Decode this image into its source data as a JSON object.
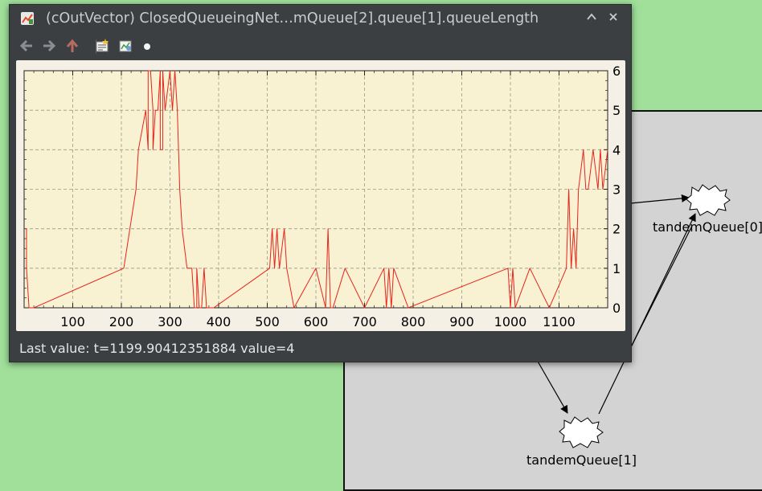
{
  "window": {
    "title": "(cOutVector) ClosedQueueingNet…mQueue[2].queue[1].queueLength",
    "status_text": "Last value: t=1199.90412351884  value=4"
  },
  "toolbar": {
    "icons": [
      "back-arrow-icon",
      "forward-arrow-icon",
      "up-arrow-icon",
      "add-chart-icon",
      "chart-properties-icon",
      "dot-icon"
    ]
  },
  "network": {
    "nodes": [
      {
        "label": "tandemQueue[0]"
      },
      {
        "label": "tandemQueue[1]"
      }
    ]
  },
  "chart_data": {
    "type": "line",
    "xlim": [
      0,
      1200
    ],
    "ylim": [
      0,
      6
    ],
    "x_ticks": [
      "100",
      "200",
      "300",
      "400",
      "500",
      "600",
      "700",
      "800",
      "900",
      "1000",
      "1100"
    ],
    "y_ticks": [
      "0",
      "1",
      "2",
      "3",
      "4",
      "5",
      "6"
    ],
    "grid": true,
    "series_color": "#e8231d",
    "x": [
      2,
      5,
      5,
      10,
      20,
      205,
      230,
      235,
      250,
      255,
      255,
      260,
      265,
      265,
      270,
      275,
      280,
      280,
      285,
      285,
      290,
      300,
      305,
      310,
      315,
      320,
      325,
      335,
      345,
      350,
      355,
      355,
      360,
      365,
      370,
      375,
      380,
      385,
      390,
      505,
      510,
      515,
      520,
      525,
      535,
      540,
      555,
      600,
      620,
      625,
      630,
      635,
      660,
      700,
      740,
      745,
      750,
      755,
      760,
      790,
      995,
      1000,
      1005,
      1010,
      1040,
      1080,
      1115,
      1120,
      1125,
      1130,
      1135,
      1140,
      1150,
      1155,
      1160,
      1170,
      1180,
      1185,
      1190,
      1200
    ],
    "y": [
      2,
      2,
      1,
      0,
      0,
      1,
      3,
      4,
      5,
      4,
      6,
      6,
      5,
      4,
      5,
      5,
      6,
      4,
      4,
      6,
      5,
      6,
      5,
      6,
      5,
      3,
      2,
      1,
      1,
      0,
      0,
      1,
      0,
      0,
      1,
      0,
      0,
      0,
      0,
      1,
      2,
      1,
      2,
      1,
      2,
      1,
      0,
      1,
      0,
      2,
      0,
      0,
      1,
      0,
      1,
      0,
      1,
      0,
      1,
      0,
      1,
      0,
      1,
      0,
      1,
      0,
      1,
      3,
      1,
      2,
      1,
      3,
      4,
      3,
      3,
      4,
      3,
      4,
      3,
      4
    ]
  }
}
